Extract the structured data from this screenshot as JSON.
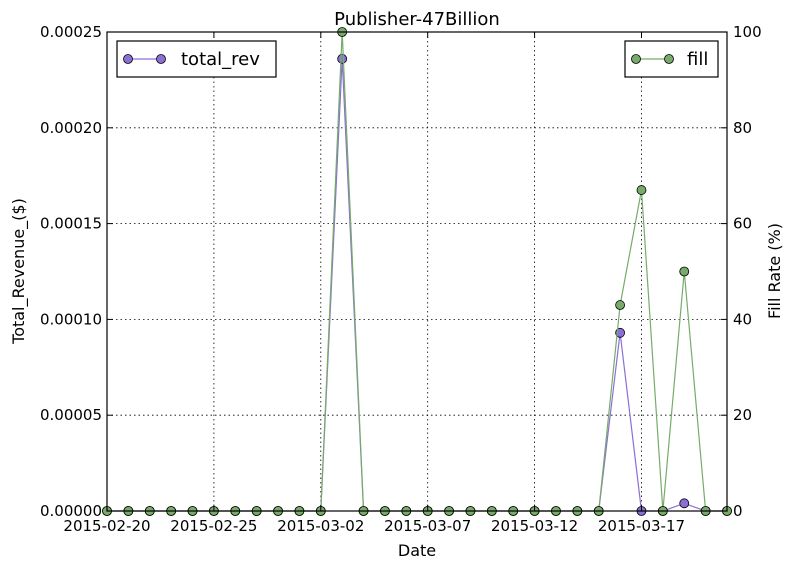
{
  "chart_data": {
    "type": "line",
    "title": "Publisher-47Billion",
    "xlabel": "Date",
    "ylabel": "Total_Revenue_($)",
    "y2label": "Fill Rate (%)",
    "x_start": "2015-02-20",
    "x_end": "2015-03-21",
    "x_ticks": [
      "2015-02-20",
      "2015-02-25",
      "2015-03-02",
      "2015-03-07",
      "2015-03-12",
      "2015-03-17"
    ],
    "ylim": [
      0,
      0.00025
    ],
    "y_ticks": [
      "0.00000",
      "0.00005",
      "0.00010",
      "0.00015",
      "0.00020",
      "0.00025"
    ],
    "y2lim": [
      0,
      100
    ],
    "y2_ticks": [
      "0",
      "20",
      "40",
      "60",
      "80",
      "100"
    ],
    "grid": true,
    "x": [
      "2015-02-20",
      "2015-02-21",
      "2015-02-22",
      "2015-02-23",
      "2015-02-24",
      "2015-02-25",
      "2015-02-26",
      "2015-02-27",
      "2015-02-28",
      "2015-03-01",
      "2015-03-02",
      "2015-03-03",
      "2015-03-04",
      "2015-03-05",
      "2015-03-06",
      "2015-03-07",
      "2015-03-08",
      "2015-03-09",
      "2015-03-10",
      "2015-03-11",
      "2015-03-12",
      "2015-03-13",
      "2015-03-14",
      "2015-03-15",
      "2015-03-16",
      "2015-03-17",
      "2015-03-18",
      "2015-03-19",
      "2015-03-20",
      "2015-03-21"
    ],
    "series": [
      {
        "name": "total_rev",
        "axis": "left",
        "color": "#8c6fd6",
        "legend_position": "top-left",
        "values": [
          0,
          0,
          0,
          0,
          0,
          0,
          0,
          0,
          0,
          0,
          0,
          0.000236,
          0,
          0,
          0,
          0,
          0,
          0,
          0,
          0,
          0,
          0,
          0,
          0,
          9.3e-05,
          0,
          0,
          4e-06,
          0,
          0
        ]
      },
      {
        "name": "fill",
        "axis": "right",
        "color": "#77ab6a",
        "legend_position": "top-right",
        "values": [
          0,
          0,
          0,
          0,
          0,
          0,
          0,
          0,
          0,
          0,
          0,
          100,
          0,
          0,
          0,
          0,
          0,
          0,
          0,
          0,
          0,
          0,
          0,
          0,
          43,
          67,
          0,
          50,
          0,
          0
        ]
      }
    ]
  }
}
